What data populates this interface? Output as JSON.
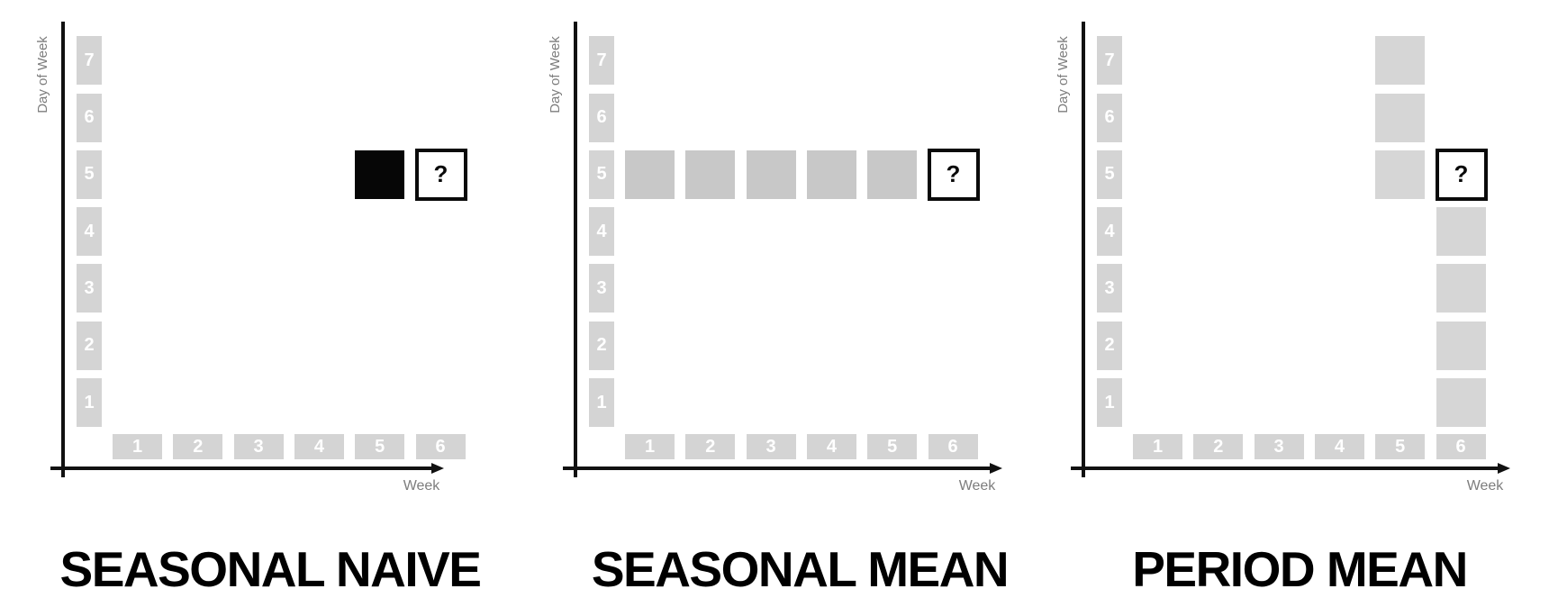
{
  "figure": {
    "x_axis_label": "Week",
    "y_axis_label": "Day of Week",
    "week_tick_labels": [
      "1",
      "2",
      "3",
      "4",
      "5",
      "6"
    ],
    "day_tick_labels": [
      "1",
      "2",
      "3",
      "4",
      "5",
      "6",
      "7"
    ],
    "question_mark": "?",
    "colors": {
      "axis": "#111111",
      "axis_label": "#7d7d7d",
      "tick_square": "#d4d4d4",
      "tick_number": "#ffffff",
      "observed_cell": "#060606",
      "seasonal_mean_cell": "#c8c8c8",
      "period_mean_cell": "#d6d6d6",
      "question_border": "#0a0a0a",
      "title": "#000000"
    }
  },
  "panels": [
    {
      "title": "SEASONAL NAIVE",
      "cells": [
        {
          "week": 5,
          "day": 5,
          "kind": "observed"
        },
        {
          "week": 6,
          "day": 5,
          "kind": "forecast"
        }
      ]
    },
    {
      "title": "SEASONAL MEAN",
      "source_color_key": "seasonal_mean_cell",
      "cells": [
        {
          "week": 1,
          "day": 5,
          "kind": "source"
        },
        {
          "week": 2,
          "day": 5,
          "kind": "source"
        },
        {
          "week": 3,
          "day": 5,
          "kind": "source"
        },
        {
          "week": 4,
          "day": 5,
          "kind": "source"
        },
        {
          "week": 5,
          "day": 5,
          "kind": "source"
        },
        {
          "week": 6,
          "day": 5,
          "kind": "forecast"
        }
      ]
    },
    {
      "title": "PERIOD MEAN",
      "source_color_key": "period_mean_cell",
      "cells": [
        {
          "week": 5,
          "day": 7,
          "kind": "source"
        },
        {
          "week": 5,
          "day": 6,
          "kind": "source"
        },
        {
          "week": 5,
          "day": 5,
          "kind": "source"
        },
        {
          "week": 6,
          "day": 4,
          "kind": "source"
        },
        {
          "week": 6,
          "day": 3,
          "kind": "source"
        },
        {
          "week": 6,
          "day": 2,
          "kind": "source"
        },
        {
          "week": 6,
          "day": 1,
          "kind": "source"
        },
        {
          "week": 6,
          "day": 5,
          "kind": "forecast"
        }
      ]
    }
  ]
}
